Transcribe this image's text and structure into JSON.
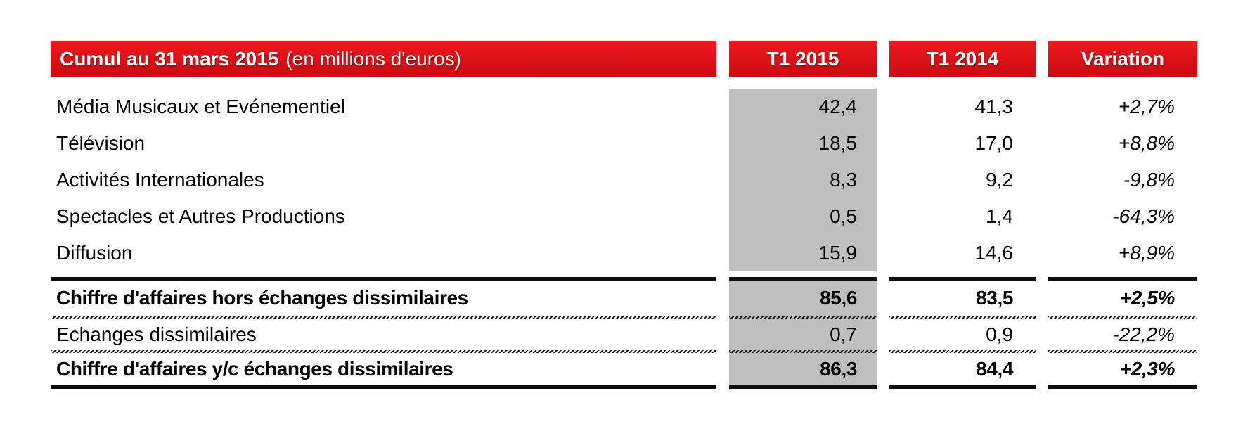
{
  "header": {
    "title": "Cumul au 31 mars 2015",
    "subtitle": "(en millions d'euros)",
    "columns": [
      "T1 2015",
      "T1 2014",
      "Variation"
    ]
  },
  "colors": {
    "accent_red": "#dc1118",
    "highlight_gray": "#bfbfbf",
    "text": "#000000",
    "header_text": "#ffffff"
  },
  "table": {
    "rows": [
      {
        "label": "Média Musicaux et Evénementiel",
        "t1_2015": "42,4",
        "t1_2014": "41,3",
        "variation": "+2,7%"
      },
      {
        "label": "Télévision",
        "t1_2015": "18,5",
        "t1_2014": "17,0",
        "variation": "+8,8%"
      },
      {
        "label": "Activités Internationales",
        "t1_2015": "8,3",
        "t1_2014": "9,2",
        "variation": "-9,8%"
      },
      {
        "label": "Spectacles et Autres Productions",
        "t1_2015": "0,5",
        "t1_2014": "1,4",
        "variation": "-64,3%"
      },
      {
        "label": "Diffusion",
        "t1_2015": "15,9",
        "t1_2014": "14,6",
        "variation": "+8,9%"
      },
      {
        "label": "Chiffre d'affaires hors échanges dissimilaires",
        "t1_2015": "85,6",
        "t1_2014": "83,5",
        "variation": "+2,5%"
      },
      {
        "label": "Echanges dissimilaires",
        "t1_2015": "0,7",
        "t1_2014": "0,9",
        "variation": "-22,2%"
      },
      {
        "label": "Chiffre d'affaires y/c échanges dissimilaires",
        "t1_2015": "86,3",
        "t1_2014": "84,4",
        "variation": "+2,3%"
      }
    ]
  }
}
